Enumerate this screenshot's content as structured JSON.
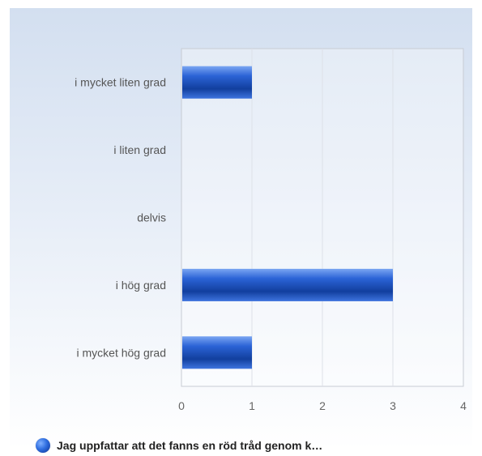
{
  "chart_data": {
    "type": "bar",
    "orientation": "horizontal",
    "categories": [
      "i mycket liten grad",
      "i liten grad",
      "delvis",
      "i hög grad",
      "i mycket hög grad"
    ],
    "series": [
      {
        "name": "Jag uppfattar att det fanns en röd tråd genom k…",
        "values": [
          1,
          0,
          0,
          3,
          1
        ]
      }
    ],
    "xlim": [
      0,
      4
    ],
    "xticks": [
      "0",
      "1",
      "2",
      "3",
      "4"
    ],
    "grid": true,
    "legend_position": "bottom-left",
    "bar_color": "#1f57c9"
  }
}
